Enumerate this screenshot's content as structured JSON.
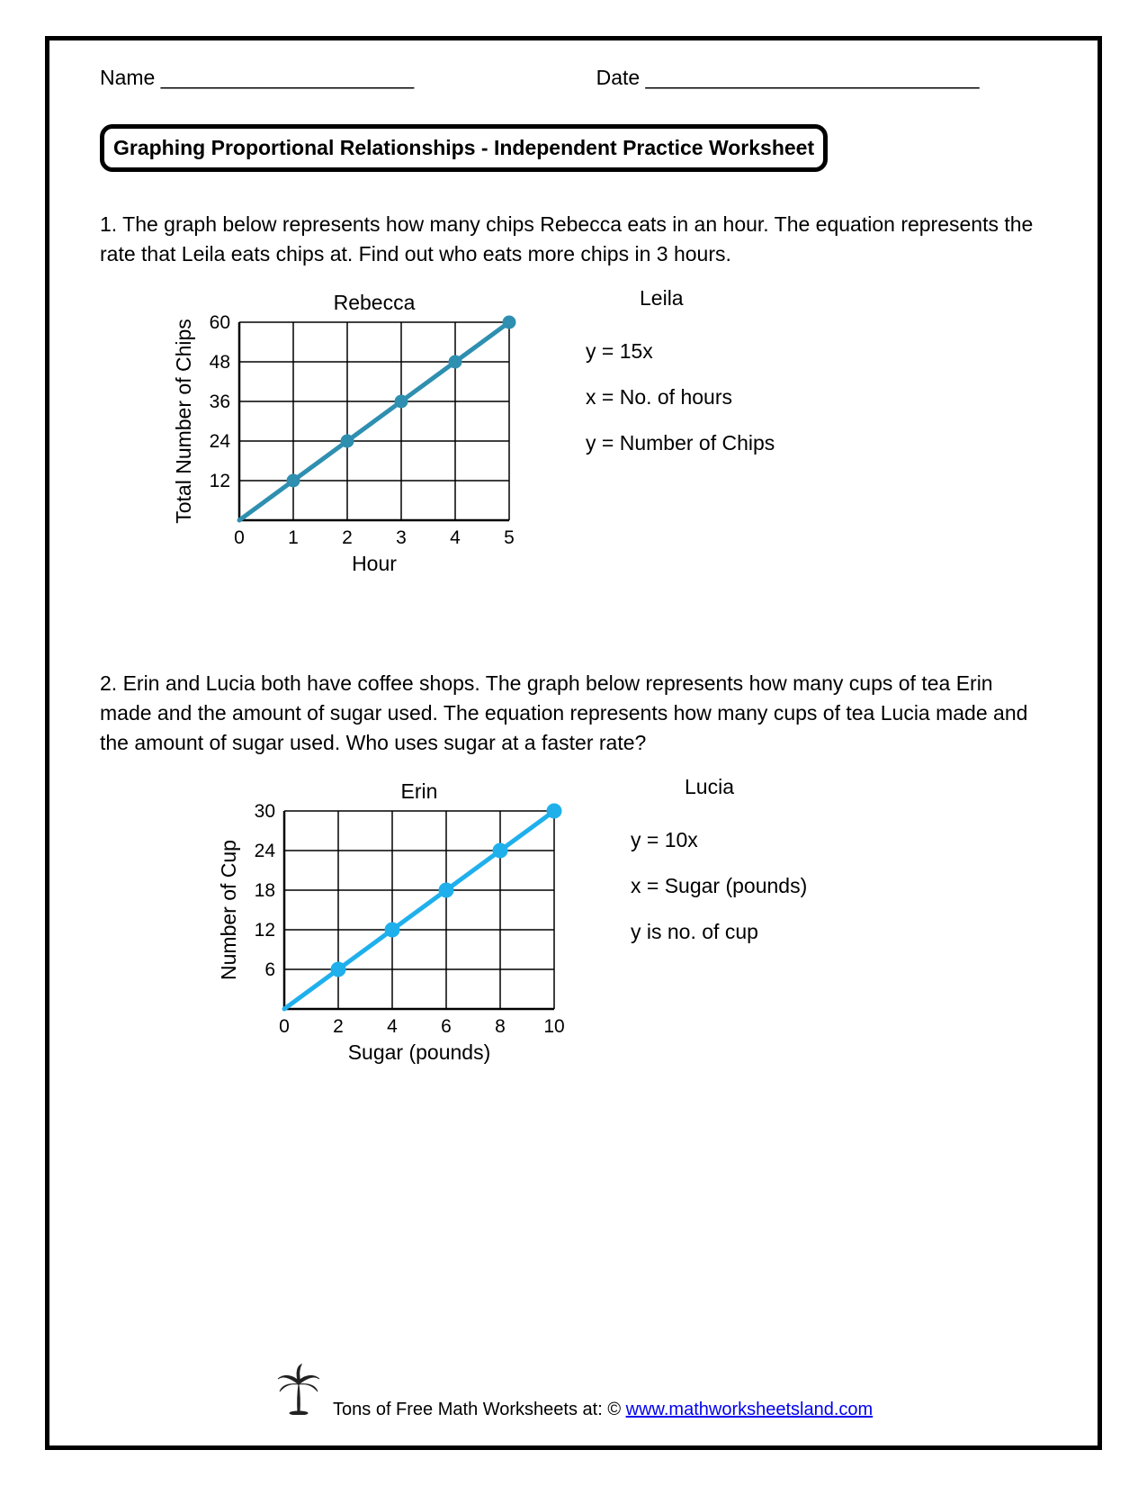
{
  "header": {
    "name_label": "Name ______________________",
    "date_label": "Date _____________________________"
  },
  "title": "Graphing Proportional Relationships - Independent Practice Worksheet",
  "q1": {
    "text": "1. The graph below represents how many chips Rebecca eats in an hour. The equation represents the rate that Leila eats chips at. Find out who eats more chips in 3 hours.",
    "chart": {
      "type": "line",
      "title": "Rebecca",
      "xlabel": "Hour",
      "ylabel": "Total Number of Chips",
      "xlim": [
        0,
        5
      ],
      "ylim": [
        0,
        60
      ],
      "xticks": [
        0,
        1,
        2,
        3,
        4,
        5
      ],
      "yticks": [
        12,
        24,
        36,
        48,
        60
      ],
      "points": [
        [
          0,
          0
        ],
        [
          1,
          12
        ],
        [
          2,
          24
        ],
        [
          3,
          36
        ],
        [
          4,
          48
        ],
        [
          5,
          60
        ]
      ],
      "line_color": "#2e8fb0",
      "marker_color": "#2e8fb0",
      "line_width": 5,
      "marker_radius": 7,
      "grid_color": "#000000",
      "background_color": "#ffffff",
      "axis_color": "#000000",
      "title_fontsize": 23,
      "label_fontsize": 23,
      "tick_fontsize": 21
    },
    "eq_title": "Leila",
    "eq_lines": [
      "y = 15x",
      "x = No. of hours",
      "y = Number of Chips"
    ]
  },
  "q2": {
    "text": "2. Erin and Lucia both have coffee shops. The graph below represents how many cups of tea Erin made and the amount of sugar used. The equation represents how many cups of tea Lucia made and the amount of sugar used. Who uses sugar at a faster rate?",
    "chart": {
      "type": "line",
      "title": "Erin",
      "xlabel": "Sugar (pounds)",
      "ylabel": "Number of Cup",
      "xlim": [
        0,
        10
      ],
      "ylim": [
        0,
        30
      ],
      "xticks": [
        0,
        2,
        4,
        6,
        8,
        10
      ],
      "yticks": [
        6,
        12,
        18,
        24,
        30
      ],
      "points": [
        [
          0,
          0
        ],
        [
          2,
          6
        ],
        [
          4,
          12
        ],
        [
          6,
          18
        ],
        [
          8,
          24
        ],
        [
          10,
          30
        ]
      ],
      "line_color": "#1fb0ec",
      "marker_color": "#1fb0ec",
      "line_width": 5,
      "marker_radius": 8,
      "grid_color": "#000000",
      "background_color": "#ffffff",
      "axis_color": "#000000",
      "title_fontsize": 23,
      "label_fontsize": 23,
      "tick_fontsize": 21
    },
    "eq_title": "Lucia",
    "eq_lines": [
      "y = 10x",
      "x = Sugar (pounds)",
      "y is no. of cup"
    ]
  },
  "footer": {
    "prefix": "Tons of Free Math Worksheets at: © ",
    "link_text": "www.mathworksheetsland.com"
  }
}
